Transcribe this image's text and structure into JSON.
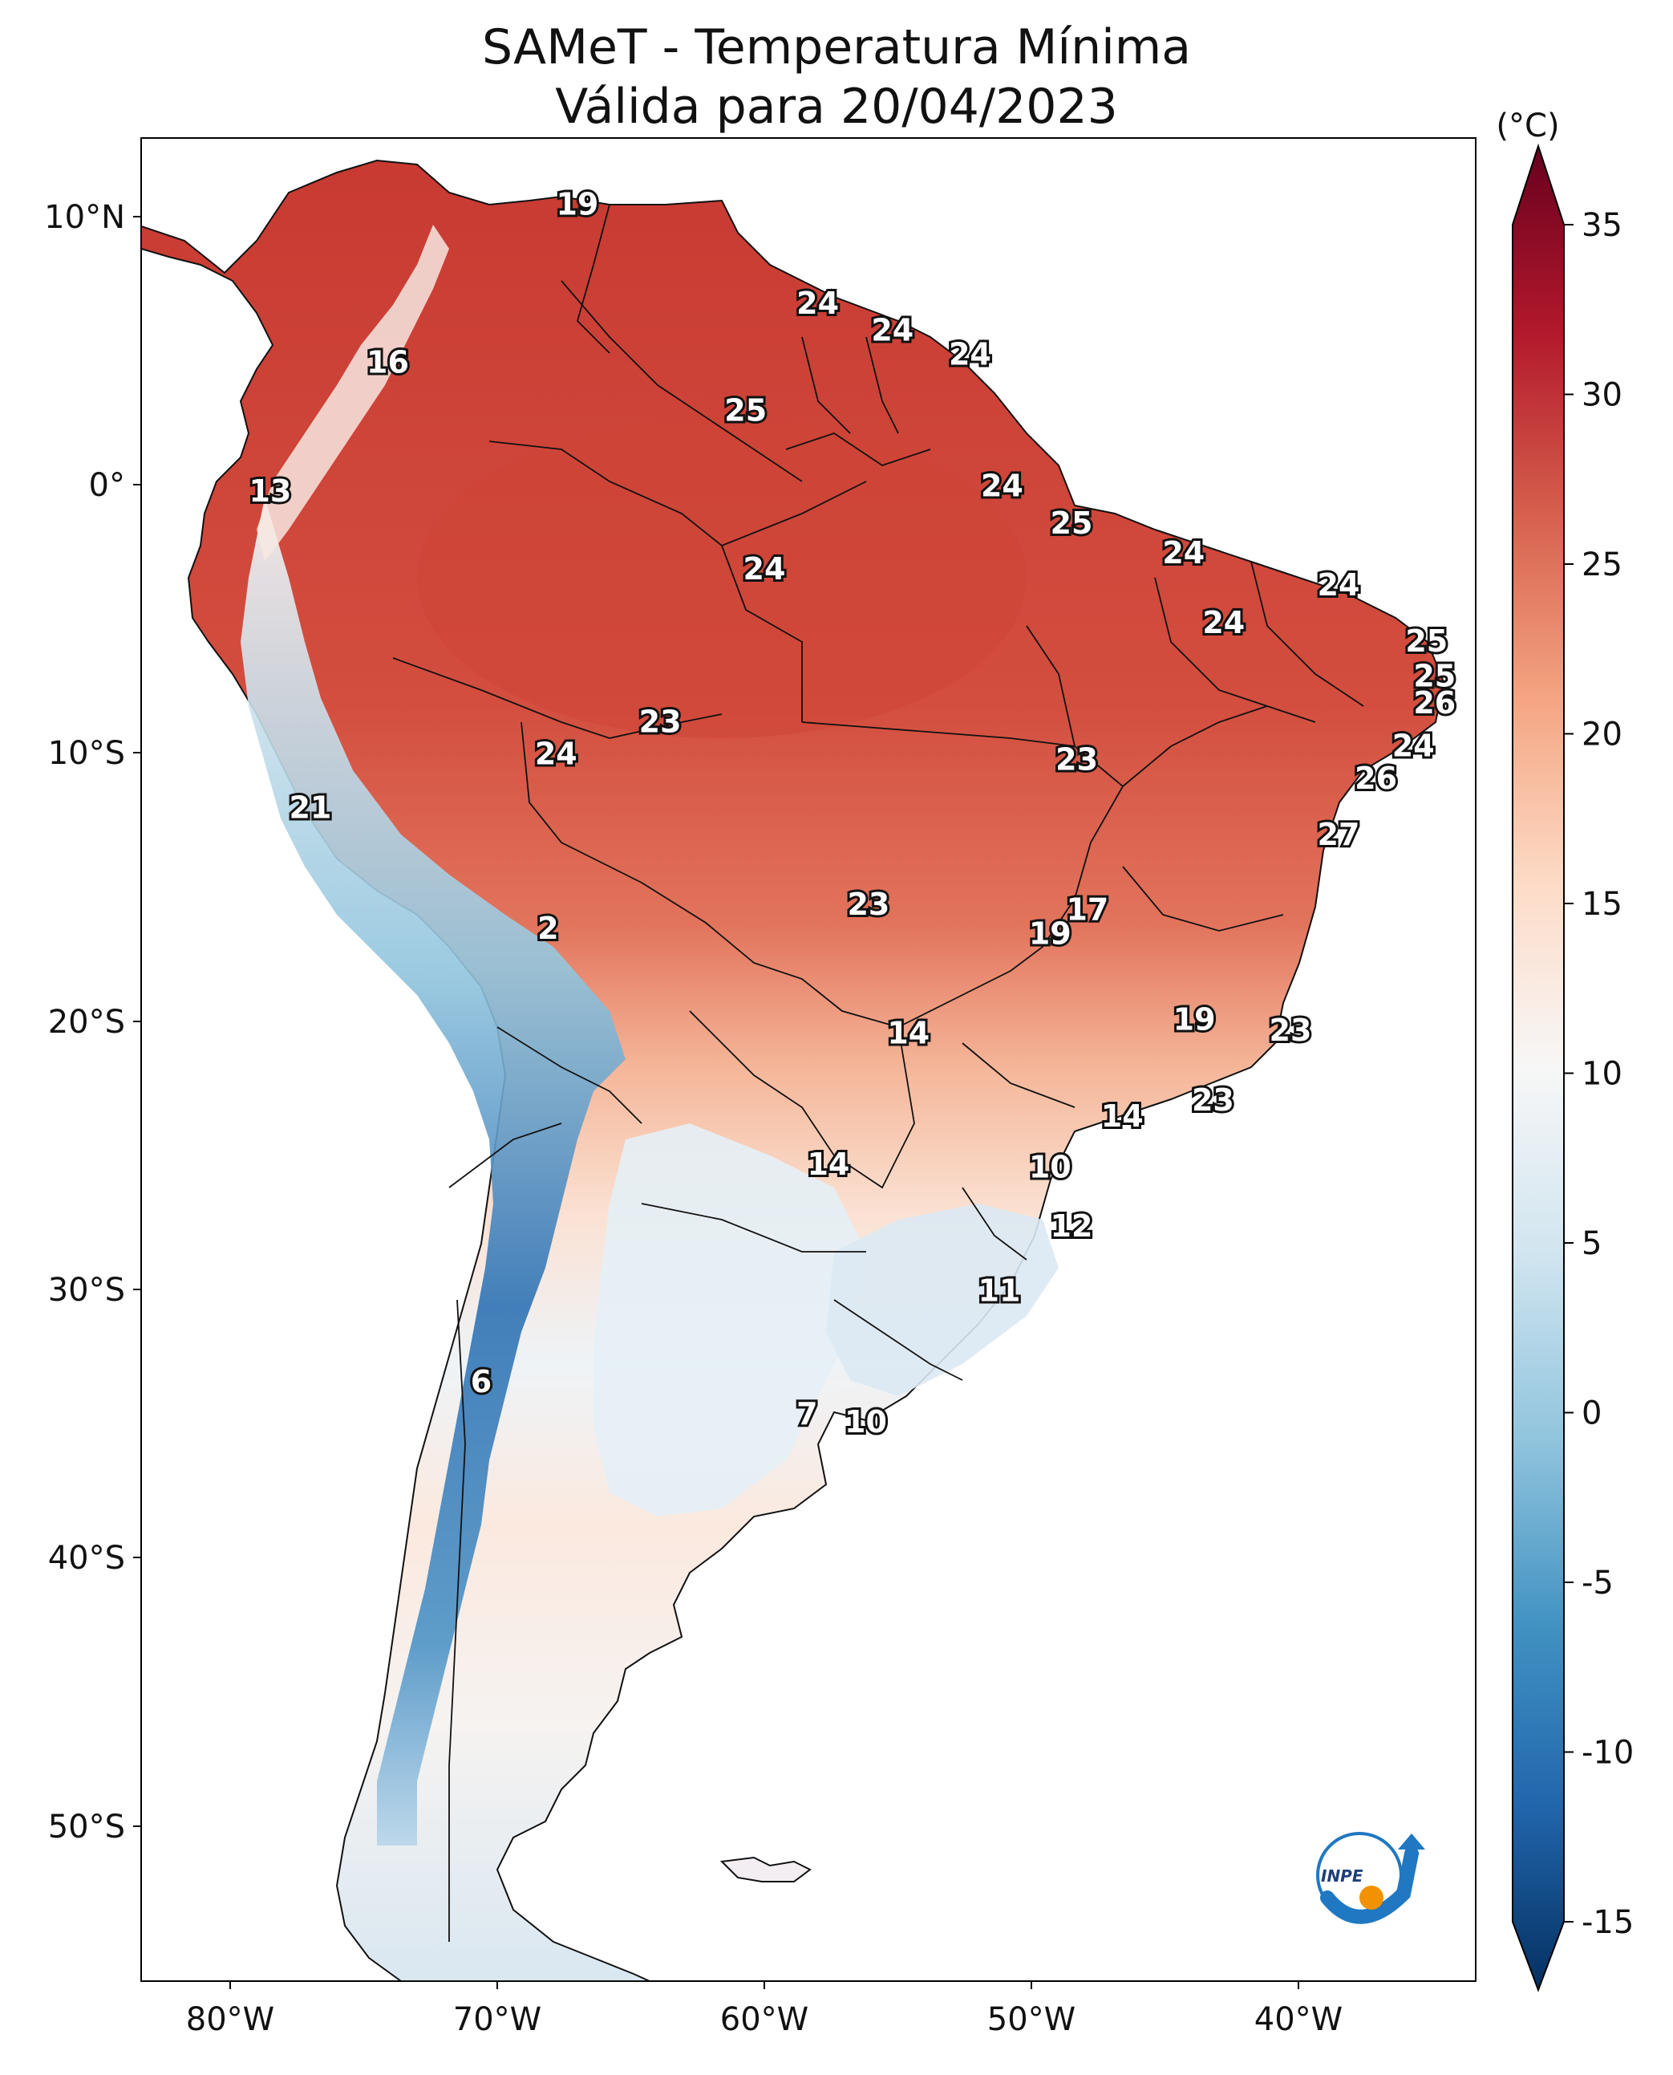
{
  "title": {
    "line1": "SAMeT - Temperatura Mínima",
    "line2": "Válida para 20/04/2023"
  },
  "colorbar": {
    "unit": "(°C)",
    "ticks": [
      "35",
      "30",
      "25",
      "20",
      "15",
      "10",
      "5",
      "0",
      "-5",
      "-10",
      "-15"
    ],
    "colors": [
      "#67001f",
      "#b2182b",
      "#d6604d",
      "#f4a582",
      "#fddbc7",
      "#f7f7f7",
      "#d1e5f0",
      "#92c5de",
      "#4393c3",
      "#2166ac",
      "#053061"
    ]
  },
  "lat_ticks": [
    "10°N",
    "0°",
    "10°S",
    "20°S",
    "30°S",
    "40°S",
    "50°S"
  ],
  "lon_ticks": [
    "80°W",
    "70°W",
    "60°W",
    "50°W",
    "40°W"
  ],
  "stations": [
    {
      "value": "19",
      "lon": -67.0,
      "lat": 10.5
    },
    {
      "value": "24",
      "lon": -58.0,
      "lat": 6.8
    },
    {
      "value": "24",
      "lon": -55.2,
      "lat": 5.8
    },
    {
      "value": "24",
      "lon": -52.3,
      "lat": 4.9
    },
    {
      "value": "16",
      "lon": -74.1,
      "lat": 4.6
    },
    {
      "value": "25",
      "lon": -60.7,
      "lat": 2.8
    },
    {
      "value": "13",
      "lon": -78.5,
      "lat": -0.2
    },
    {
      "value": "24",
      "lon": -51.1,
      "lat": 0.0
    },
    {
      "value": "25",
      "lon": -48.5,
      "lat": -1.4
    },
    {
      "value": "24",
      "lon": -44.3,
      "lat": -2.5
    },
    {
      "value": "24",
      "lon": -38.5,
      "lat": -3.7
    },
    {
      "value": "24",
      "lon": -60.0,
      "lat": -3.1
    },
    {
      "value": "24",
      "lon": -42.8,
      "lat": -5.1
    },
    {
      "value": "25",
      "lon": -35.2,
      "lat": -5.8
    },
    {
      "value": "25",
      "lon": -34.9,
      "lat": -7.1
    },
    {
      "value": "26",
      "lon": -34.9,
      "lat": -8.1
    },
    {
      "value": "23",
      "lon": -63.9,
      "lat": -8.8
    },
    {
      "value": "24",
      "lon": -67.8,
      "lat": -10.0
    },
    {
      "value": "23",
      "lon": -48.3,
      "lat": -10.2
    },
    {
      "value": "24",
      "lon": -35.7,
      "lat": -9.7
    },
    {
      "value": "26",
      "lon": -37.1,
      "lat": -10.9
    },
    {
      "value": "21",
      "lon": -77.0,
      "lat": -12.0
    },
    {
      "value": "27",
      "lon": -38.5,
      "lat": -13.0
    },
    {
      "value": "2",
      "lon": -68.1,
      "lat": -16.5
    },
    {
      "value": "23",
      "lon": -56.1,
      "lat": -15.6
    },
    {
      "value": "17",
      "lon": -47.9,
      "lat": -15.8
    },
    {
      "value": "19",
      "lon": -49.3,
      "lat": -16.7
    },
    {
      "value": "19",
      "lon": -43.9,
      "lat": -19.9
    },
    {
      "value": "14",
      "lon": -54.6,
      "lat": -20.4
    },
    {
      "value": "23",
      "lon": -40.3,
      "lat": -20.3
    },
    {
      "value": "23",
      "lon": -43.2,
      "lat": -22.9
    },
    {
      "value": "14",
      "lon": -46.6,
      "lat": -23.5
    },
    {
      "value": "14",
      "lon": -57.6,
      "lat": -25.3
    },
    {
      "value": "10",
      "lon": -49.3,
      "lat": -25.4
    },
    {
      "value": "12",
      "lon": -48.5,
      "lat": -27.6
    },
    {
      "value": "11",
      "lon": -51.2,
      "lat": -30.0
    },
    {
      "value": "6",
      "lon": -70.6,
      "lat": -33.4
    },
    {
      "value": "7",
      "lon": -58.4,
      "lat": -34.6
    },
    {
      "value": "10",
      "lon": -56.2,
      "lat": -34.9
    }
  ],
  "logo_text": "INPE"
}
